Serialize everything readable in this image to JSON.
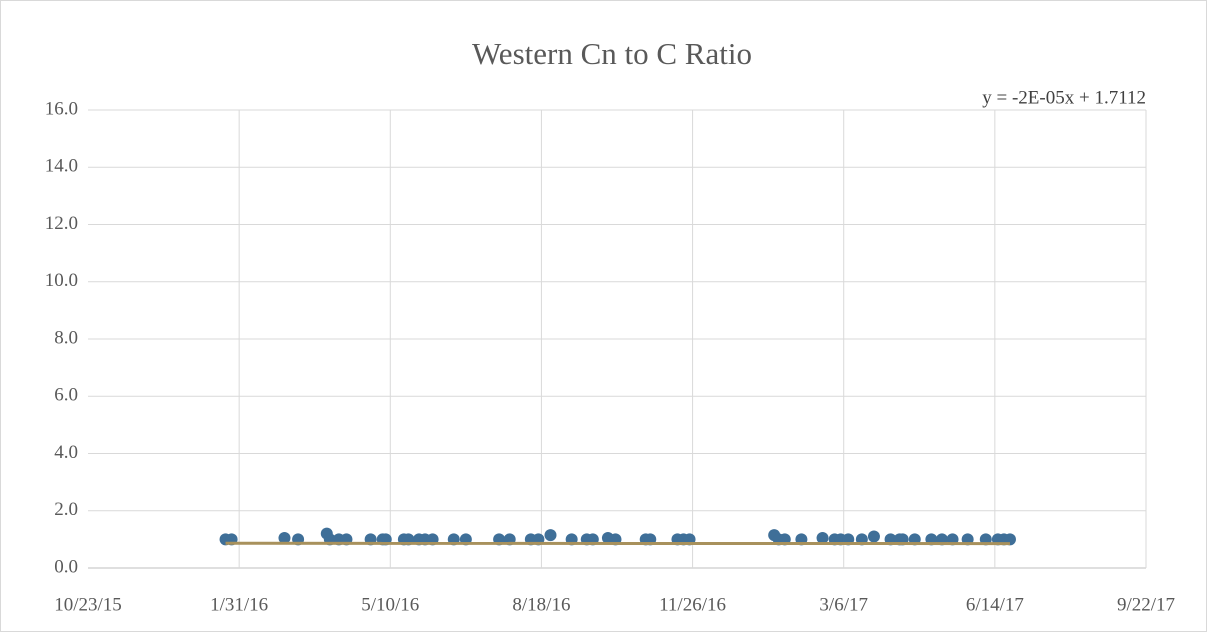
{
  "chart_data": {
    "type": "scatter",
    "title": "Western Cn to C Ratio",
    "trendline": {
      "label": "y = -2E-05x + 1.7112",
      "slope": -2e-05,
      "intercept": 1.7112,
      "color": "#a8915c"
    },
    "series": [
      {
        "color": "#3f6f98",
        "x": [
          42391,
          42395,
          42430,
          42439,
          42458,
          42460,
          42466,
          42471,
          42487,
          42495,
          42497,
          42509,
          42512,
          42519,
          42523,
          42528,
          42542,
          42550,
          42572,
          42579,
          42593,
          42598,
          42606,
          42620,
          42630,
          42634,
          42644,
          42649,
          42669,
          42672,
          42690,
          42694,
          42698,
          42754,
          42757,
          42761,
          42772,
          42786,
          42794,
          42798,
          42803,
          42812,
          42820,
          42831,
          42837,
          42839,
          42847,
          42858,
          42865,
          42872,
          42882,
          42894,
          42902,
          42906,
          42910
        ],
        "values": [
          1.0,
          1.0,
          1.05,
          1.0,
          1.2,
          1.0,
          1.0,
          1.0,
          1.0,
          1.0,
          1.0,
          1.0,
          1.0,
          1.0,
          1.0,
          1.0,
          1.0,
          1.0,
          1.0,
          1.0,
          1.0,
          1.0,
          1.15,
          1.0,
          1.0,
          1.0,
          1.05,
          1.0,
          1.0,
          1.0,
          1.0,
          1.0,
          1.0,
          1.15,
          1.0,
          1.0,
          1.0,
          1.05,
          1.0,
          1.0,
          1.0,
          1.0,
          1.1,
          1.0,
          1.0,
          1.0,
          1.0,
          1.0,
          1.0,
          1.0,
          1.0,
          1.0,
          1.0,
          1.0,
          1.0
        ]
      }
    ],
    "xlim": [
      42300,
      43000
    ],
    "xticks": [
      {
        "value": 42300,
        "label": "10/23/15"
      },
      {
        "value": 42400,
        "label": "1/31/16"
      },
      {
        "value": 42500,
        "label": "5/10/16"
      },
      {
        "value": 42600,
        "label": "8/18/16"
      },
      {
        "value": 42700,
        "label": "11/26/16"
      },
      {
        "value": 42800,
        "label": "3/6/17"
      },
      {
        "value": 42900,
        "label": "6/14/17"
      },
      {
        "value": 43000,
        "label": "9/22/17"
      }
    ],
    "ylim": [
      0,
      16
    ],
    "yticks": [
      {
        "value": 0,
        "label": "0.0"
      },
      {
        "value": 2,
        "label": "2.0"
      },
      {
        "value": 4,
        "label": "4.0"
      },
      {
        "value": 6,
        "label": "6.0"
      },
      {
        "value": 8,
        "label": "8.0"
      },
      {
        "value": 10,
        "label": "10.0"
      },
      {
        "value": 12,
        "label": "12.0"
      },
      {
        "value": 14,
        "label": "14.0"
      },
      {
        "value": 16,
        "label": "16.0"
      }
    ],
    "grid": true
  }
}
